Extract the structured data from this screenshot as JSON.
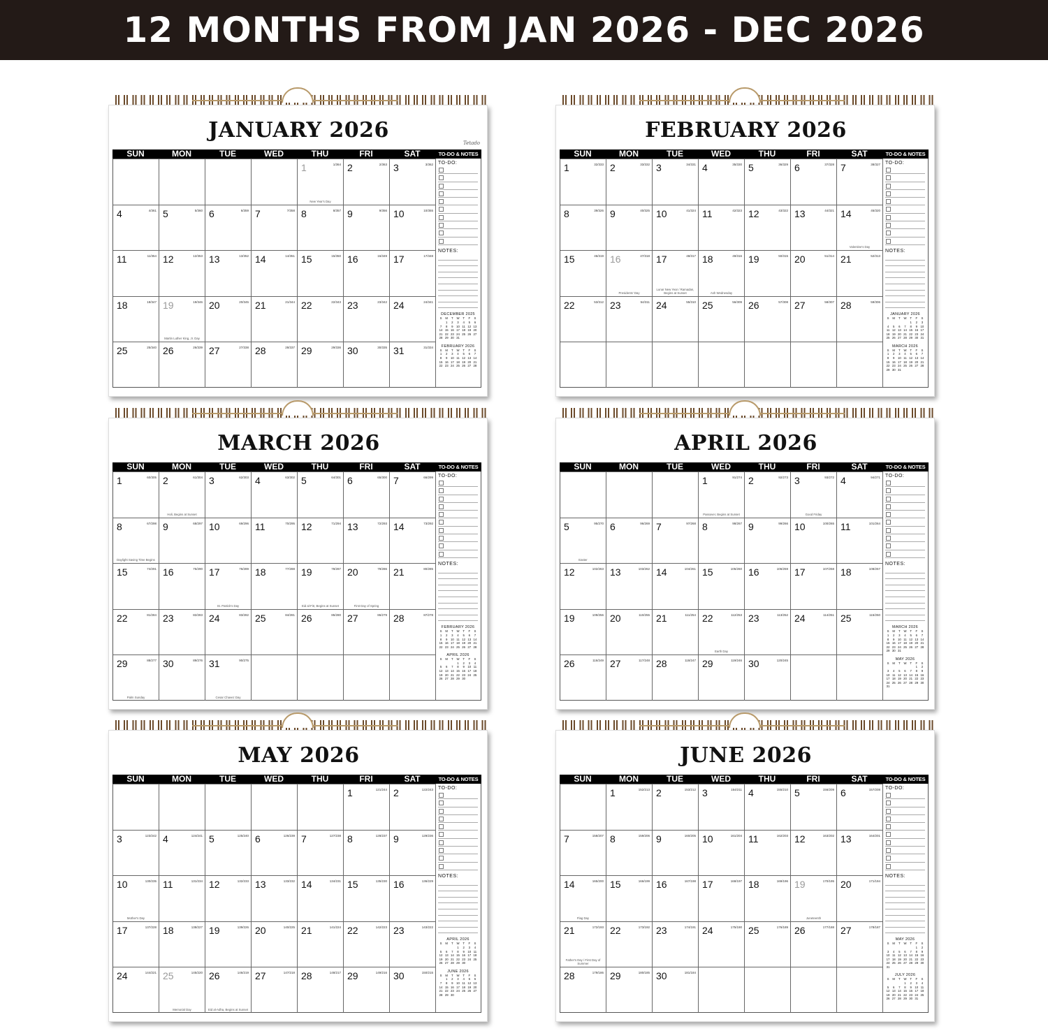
{
  "banner": "12 MONTHS FROM JAN 2026 - DEC 2026",
  "brand": "Tetado",
  "weekdays": [
    "SUN",
    "MON",
    "TUE",
    "WED",
    "THU",
    "FRI",
    "SAT"
  ],
  "mini_weekdays": [
    "S",
    "M",
    "T",
    "W",
    "T",
    "F",
    "S"
  ],
  "todo_header": "TO-DO & NOTES",
  "todo_label": "TO-DO:",
  "notes_label": "NOTES:",
  "months": [
    {
      "title": "JANUARY 2026",
      "start": 4,
      "days": 31,
      "doy": [
        "1/364",
        "2/363",
        "3/362",
        "4/361",
        "5/360",
        "6/359",
        "7/358",
        "8/357",
        "9/356",
        "10/355",
        "11/354",
        "12/353",
        "13/352",
        "14/351",
        "15/350",
        "16/349",
        "17/348",
        "18/347",
        "19/346",
        "20/345",
        "21/344",
        "22/343",
        "23/342",
        "24/341",
        "25/340",
        "26/339",
        "27/338",
        "28/337",
        "29/336",
        "30/335",
        "31/334"
      ],
      "holidays": {
        "1": "New Year's Day",
        "19": "Martin Luther King, Jr. Day"
      },
      "gray": [
        1,
        19
      ],
      "minis": [
        {
          "title": "DECEMBER 2025",
          "start": 1,
          "days": 31
        },
        {
          "title": "FEBRUARY 2026",
          "start": 0,
          "days": 28
        }
      ]
    },
    {
      "title": "FEBRUARY 2026",
      "start": 0,
      "days": 28,
      "doy": [
        "32/333",
        "33/332",
        "34/331",
        "35/330",
        "36/329",
        "37/328",
        "38/327",
        "39/326",
        "40/325",
        "41/324",
        "42/323",
        "43/322",
        "44/321",
        "45/320",
        "46/319",
        "47/318",
        "48/317",
        "49/316",
        "50/315",
        "51/314",
        "52/313",
        "53/312",
        "54/311",
        "55/310",
        "56/309",
        "57/308",
        "58/307",
        "59/306"
      ],
      "holidays": {
        "14": "Valentine's Day",
        "16": "Presidents' Day",
        "17": "Lunar New Year / Ramadan, Begins at Sunset",
        "18": "Ash Wednesday"
      },
      "gray": [
        16
      ],
      "minis": [
        {
          "title": "JANUARY 2026",
          "start": 4,
          "days": 31
        },
        {
          "title": "MARCH 2026",
          "start": 0,
          "days": 31
        }
      ]
    },
    {
      "title": "MARCH 2026",
      "start": 0,
      "days": 31,
      "doy": [
        "60/305",
        "61/304",
        "62/303",
        "63/302",
        "64/301",
        "65/300",
        "66/299",
        "67/298",
        "68/297",
        "69/296",
        "70/295",
        "71/294",
        "72/293",
        "73/292",
        "74/291",
        "75/290",
        "76/289",
        "77/288",
        "78/287",
        "79/286",
        "80/285",
        "81/284",
        "82/283",
        "83/282",
        "84/281",
        "85/280",
        "86/279",
        "87/278",
        "88/277",
        "89/276",
        "90/275"
      ],
      "holidays": {
        "2": "Holi, Begins at Sunset",
        "8": "Daylight Saving Time Begins",
        "17": "St. Patrick's Day",
        "19": "Eid al-Fitr, Begins at Sunset",
        "20": "First Day of Spring",
        "29": "Palm Sunday",
        "31": "Cesar Chavez Day"
      },
      "gray": [],
      "minis": [
        {
          "title": "FEBRUARY 2026",
          "start": 0,
          "days": 28
        },
        {
          "title": "APRIL 2026",
          "start": 3,
          "days": 30
        }
      ]
    },
    {
      "title": "APRIL 2026",
      "start": 3,
      "days": 30,
      "doy": [
        "91/274",
        "92/273",
        "93/272",
        "94/271",
        "95/270",
        "96/269",
        "97/268",
        "98/267",
        "99/266",
        "100/265",
        "101/264",
        "102/263",
        "103/262",
        "104/261",
        "105/260",
        "106/259",
        "107/258",
        "108/257",
        "109/256",
        "110/255",
        "111/254",
        "112/253",
        "113/252",
        "114/251",
        "115/250",
        "116/249",
        "117/248",
        "118/247",
        "119/246",
        "120/245"
      ],
      "holidays": {
        "1": "Passover, Begins at Sunset",
        "3": "Good Friday",
        "5": "Easter",
        "22": "Earth Day"
      },
      "gray": [],
      "minis": [
        {
          "title": "MARCH 2026",
          "start": 0,
          "days": 31
        },
        {
          "title": "MAY 2026",
          "start": 5,
          "days": 31
        }
      ]
    },
    {
      "title": "MAY 2026",
      "start": 5,
      "days": 31,
      "doy": [
        "121/244",
        "122/243",
        "123/242",
        "124/241",
        "125/240",
        "126/239",
        "127/238",
        "128/237",
        "129/236",
        "130/235",
        "131/234",
        "132/233",
        "133/232",
        "134/231",
        "135/230",
        "136/229",
        "137/228",
        "138/227",
        "139/226",
        "140/225",
        "141/224",
        "142/223",
        "143/222",
        "144/221",
        "145/220",
        "146/219",
        "147/218",
        "148/217",
        "149/216",
        "150/215",
        "151/214"
      ],
      "holidays": {
        "10": "Mother's Day",
        "25": "Memorial Day",
        "26": "Eid al-Adha, Begins at Sunset"
      },
      "gray": [
        25
      ],
      "minis": [
        {
          "title": "APRIL 2026",
          "start": 3,
          "days": 30
        },
        {
          "title": "JUNE 2026",
          "start": 1,
          "days": 30
        }
      ]
    },
    {
      "title": "JUNE 2026",
      "start": 1,
      "days": 30,
      "doy": [
        "152/213",
        "153/212",
        "154/211",
        "155/210",
        "156/209",
        "157/208",
        "158/207",
        "159/206",
        "160/205",
        "161/204",
        "162/203",
        "163/202",
        "164/201",
        "165/200",
        "166/199",
        "167/198",
        "168/197",
        "169/196",
        "170/195",
        "171/194",
        "172/193",
        "173/192",
        "174/191",
        "175/190",
        "176/189",
        "177/188",
        "178/187",
        "179/186",
        "180/185",
        "181/184"
      ],
      "holidays": {
        "14": "Flag Day",
        "19": "Juneteenth",
        "21": "Father's Day / First Day of Summer"
      },
      "gray": [
        19
      ],
      "minis": [
        {
          "title": "MAY 2026",
          "start": 5,
          "days": 31
        },
        {
          "title": "JULY 2026",
          "start": 3,
          "days": 31
        }
      ]
    }
  ]
}
